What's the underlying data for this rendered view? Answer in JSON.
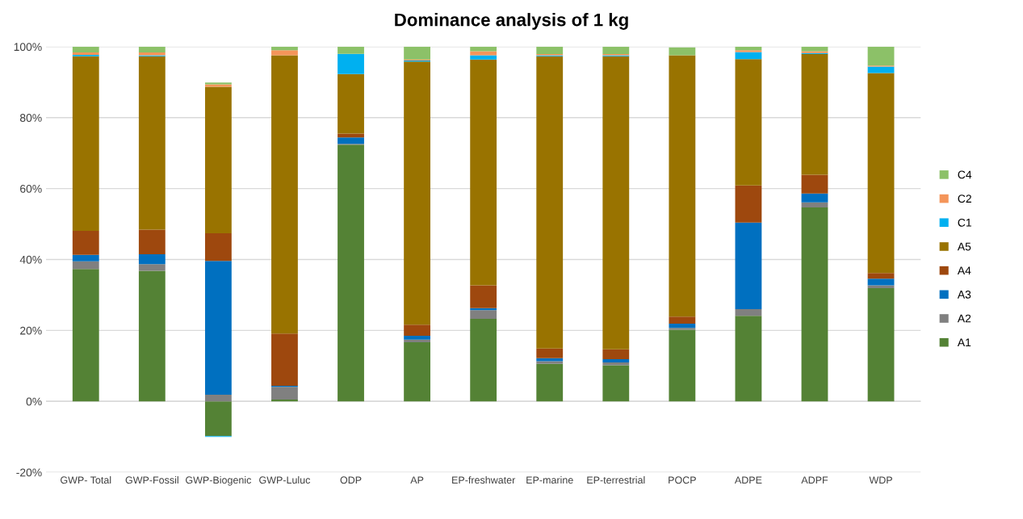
{
  "chart_data": {
    "type": "bar",
    "title": "Dominance analysis of 1 kg",
    "stacked": true,
    "categories": [
      "GWP- Total",
      "GWP-Fossil",
      "GWP-Biogenic",
      "GWP-Luluc",
      "ODP",
      "AP",
      "EP-freshwater",
      "EP-marine",
      "EP-terrestrial",
      "POCP",
      "ADPE",
      "ADPF",
      "WDP"
    ],
    "series": [
      {
        "name": "A1",
        "color": "#548235",
        "values": [
          37.3,
          36.8,
          -9.8,
          0.5,
          72.4,
          16.7,
          23.3,
          10.6,
          10.2,
          20.2,
          24.1,
          54.7,
          31.9
        ]
      },
      {
        "name": "A2",
        "color": "#808080",
        "values": [
          2.2,
          1.9,
          1.9,
          3.6,
          0.2,
          0.7,
          2.4,
          0.7,
          0.8,
          0.5,
          1.9,
          1.4,
          0.8
        ]
      },
      {
        "name": "A3",
        "color": "#0070c0",
        "values": [
          1.8,
          2.8,
          37.7,
          0.3,
          1.8,
          1.1,
          0.6,
          0.9,
          0.9,
          1.2,
          24.4,
          2.5,
          1.9
        ]
      },
      {
        "name": "A4",
        "color": "#9e480e",
        "values": [
          6.8,
          6.9,
          7.8,
          14.7,
          1.1,
          3.1,
          6.4,
          2.7,
          2.8,
          2.0,
          10.5,
          5.3,
          1.6
        ]
      },
      {
        "name": "A5",
        "color": "#997300",
        "values": [
          49.2,
          48.9,
          41.3,
          78.5,
          16.8,
          74.2,
          63.7,
          82.4,
          82.6,
          73.7,
          35.6,
          34.0,
          56.4
        ]
      },
      {
        "name": "C1",
        "color": "#00b0f0",
        "values": [
          0.4,
          0.3,
          -0.2,
          0,
          5.7,
          0.3,
          1.2,
          0.3,
          0.3,
          0,
          2.0,
          0.3,
          1.8
        ]
      },
      {
        "name": "C2",
        "color": "#f4955a",
        "values": [
          0.7,
          0.8,
          0.7,
          1.4,
          0,
          0.3,
          1.1,
          0.3,
          0.3,
          null,
          0.5,
          0.5,
          0.3
        ]
      },
      {
        "name": "C4",
        "color": "#8cc168",
        "values": [
          1.6,
          1.6,
          0.5,
          1.0,
          2.0,
          3.6,
          1.3,
          2.1,
          2.1,
          2.2,
          1.0,
          1.3,
          5.3
        ]
      }
    ],
    "ylim": [
      -20,
      100
    ],
    "yticks": [
      {
        "value": -20,
        "label": "-20%"
      },
      {
        "value": 0,
        "label": "0%"
      },
      {
        "value": 20,
        "label": "20%"
      },
      {
        "value": 40,
        "label": "40%"
      },
      {
        "value": 60,
        "label": "60%"
      },
      {
        "value": 80,
        "label": "80%"
      },
      {
        "value": 100,
        "label": "100%"
      }
    ],
    "grid": "y",
    "legend": "right"
  }
}
